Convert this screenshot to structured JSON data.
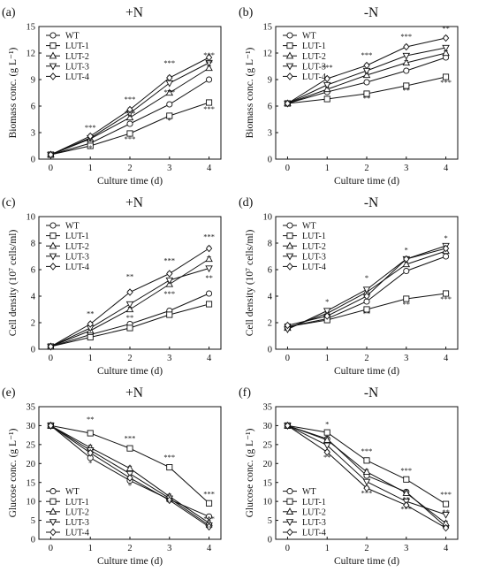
{
  "chart_data": [
    {
      "type": "line",
      "panel_label": "(a)",
      "title": "+N",
      "xlabel": "Culture time (d)",
      "ylabel": "Biomass conc. (g L⁻¹)",
      "x": [
        0,
        1,
        2,
        3,
        4
      ],
      "xlim": [
        -0.3,
        4.3
      ],
      "ylim": [
        0,
        15
      ],
      "yticks": [
        0,
        3,
        6,
        9,
        12,
        15
      ],
      "legend_position": "top-left",
      "series": [
        {
          "name": "WT",
          "marker": "circle",
          "values": [
            0.5,
            1.8,
            4.0,
            6.2,
            9.0
          ]
        },
        {
          "name": "LUT-1",
          "marker": "square",
          "values": [
            0.5,
            1.5,
            2.9,
            4.9,
            6.4
          ]
        },
        {
          "name": "LUT-2",
          "marker": "triangle-up",
          "values": [
            0.5,
            2.3,
            4.7,
            7.5,
            10.3
          ]
        },
        {
          "name": "LUT-3",
          "marker": "triangle-down",
          "values": [
            0.5,
            2.4,
            5.2,
            8.6,
            10.9
          ]
        },
        {
          "name": "LUT-4",
          "marker": "diamond",
          "values": [
            0.5,
            2.6,
            5.6,
            9.2,
            11.5
          ]
        }
      ],
      "annotations": [
        {
          "x": 1,
          "y": 3.3,
          "text": "***"
        },
        {
          "x": 1,
          "y": 1.0,
          "text": "*"
        },
        {
          "x": 2,
          "y": 6.5,
          "text": "***"
        },
        {
          "x": 2,
          "y": 4.9,
          "text": "***"
        },
        {
          "x": 2,
          "y": 2.0,
          "text": "***"
        },
        {
          "x": 3,
          "y": 10.6,
          "text": "***"
        },
        {
          "x": 3,
          "y": 7.3,
          "text": "***"
        },
        {
          "x": 3,
          "y": 4.1,
          "text": "*"
        },
        {
          "x": 4,
          "y": 11.5,
          "text": "***"
        },
        {
          "x": 4,
          "y": 10.6,
          "text": "**"
        },
        {
          "x": 4,
          "y": 5.4,
          "text": "***"
        }
      ]
    },
    {
      "type": "line",
      "panel_label": "(b)",
      "title": "-N",
      "xlabel": "Culture time (d)",
      "ylabel": "Biomass conc. (g L⁻¹)",
      "x": [
        0,
        1,
        2,
        3,
        4
      ],
      "xlim": [
        -0.3,
        4.3
      ],
      "ylim": [
        0,
        15
      ],
      "yticks": [
        0,
        3,
        6,
        9,
        12,
        15
      ],
      "legend_position": "top-left",
      "series": [
        {
          "name": "WT",
          "marker": "circle",
          "values": [
            6.3,
            7.6,
            8.7,
            10.0,
            11.5
          ]
        },
        {
          "name": "LUT-1",
          "marker": "square",
          "values": [
            6.3,
            6.8,
            7.4,
            8.3,
            9.3
          ]
        },
        {
          "name": "LUT-2",
          "marker": "triangle-up",
          "values": [
            6.3,
            7.9,
            9.5,
            10.9,
            12.0
          ]
        },
        {
          "name": "LUT-3",
          "marker": "triangle-down",
          "values": [
            6.3,
            8.4,
            10.0,
            11.7,
            12.6
          ]
        },
        {
          "name": "LUT-4",
          "marker": "diamond",
          "values": [
            6.3,
            9.1,
            10.6,
            12.7,
            13.7
          ]
        }
      ],
      "annotations": [
        {
          "x": 1,
          "y": 10.1,
          "text": "***"
        },
        {
          "x": 2,
          "y": 11.5,
          "text": "***"
        },
        {
          "x": 2,
          "y": 6.6,
          "text": "**"
        },
        {
          "x": 3,
          "y": 13.6,
          "text": "***"
        },
        {
          "x": 3,
          "y": 7.5,
          "text": "**"
        },
        {
          "x": 4,
          "y": 14.5,
          "text": "**"
        },
        {
          "x": 4,
          "y": 8.4,
          "text": "***"
        }
      ]
    },
    {
      "type": "line",
      "panel_label": "(c)",
      "title": "+N",
      "xlabel": "Culture time (d)",
      "ylabel": "Cell density (10⁷ cells/ml)",
      "x": [
        0,
        1,
        2,
        3,
        4
      ],
      "xlim": [
        -0.3,
        4.3
      ],
      "ylim": [
        0,
        10
      ],
      "yticks": [
        0,
        2,
        4,
        6,
        8,
        10
      ],
      "legend_position": "top-left",
      "series": [
        {
          "name": "WT",
          "marker": "circle",
          "values": [
            0.2,
            1.1,
            1.9,
            2.9,
            4.2
          ]
        },
        {
          "name": "LUT-1",
          "marker": "square",
          "values": [
            0.2,
            0.9,
            1.6,
            2.6,
            3.4
          ]
        },
        {
          "name": "LUT-2",
          "marker": "triangle-up",
          "values": [
            0.2,
            1.4,
            3.0,
            4.9,
            6.8
          ]
        },
        {
          "name": "LUT-3",
          "marker": "triangle-down",
          "values": [
            0.2,
            1.6,
            3.4,
            5.2,
            6.1
          ]
        },
        {
          "name": "LUT-4",
          "marker": "diamond",
          "values": [
            0.2,
            1.9,
            4.3,
            5.7,
            7.6
          ]
        }
      ],
      "annotations": [
        {
          "x": 1,
          "y": 2.5,
          "text": "**"
        },
        {
          "x": 2,
          "y": 5.3,
          "text": "**"
        },
        {
          "x": 2,
          "y": 2.2,
          "text": "**"
        },
        {
          "x": 3,
          "y": 6.5,
          "text": "***"
        },
        {
          "x": 3,
          "y": 4.0,
          "text": "***"
        },
        {
          "x": 4,
          "y": 8.3,
          "text": "***"
        },
        {
          "x": 4,
          "y": 5.2,
          "text": "**"
        }
      ]
    },
    {
      "type": "line",
      "panel_label": "(d)",
      "title": "-N",
      "xlabel": "Culture time (d)",
      "ylabel": "Cell density (10⁷ cells/ml)",
      "x": [
        0,
        1,
        2,
        3,
        4
      ],
      "xlim": [
        -0.3,
        4.3
      ],
      "ylim": [
        0,
        10
      ],
      "yticks": [
        0,
        2,
        4,
        6,
        8,
        10
      ],
      "legend_position": "top-left",
      "series": [
        {
          "name": "WT",
          "marker": "circle",
          "values": [
            1.7,
            2.3,
            3.6,
            5.9,
            7.0
          ]
        },
        {
          "name": "LUT-1",
          "marker": "square",
          "values": [
            1.7,
            2.2,
            3.0,
            3.8,
            4.2
          ]
        },
        {
          "name": "LUT-2",
          "marker": "triangle-up",
          "values": [
            1.6,
            2.7,
            4.3,
            6.4,
            7.4
          ]
        },
        {
          "name": "LUT-3",
          "marker": "triangle-down",
          "values": [
            1.5,
            2.9,
            4.5,
            6.8,
            7.8
          ]
        },
        {
          "name": "LUT-4",
          "marker": "diamond",
          "values": [
            1.8,
            2.5,
            4.0,
            6.8,
            7.6
          ]
        }
      ],
      "annotations": [
        {
          "x": 1,
          "y": 3.4,
          "text": "*"
        },
        {
          "x": 2,
          "y": 5.2,
          "text": "*"
        },
        {
          "x": 2,
          "y": 2.5,
          "text": "**"
        },
        {
          "x": 3,
          "y": 7.3,
          "text": "*"
        },
        {
          "x": 3,
          "y": 3.2,
          "text": "**"
        },
        {
          "x": 4,
          "y": 8.2,
          "text": "*"
        },
        {
          "x": 4,
          "y": 3.6,
          "text": "***"
        }
      ]
    },
    {
      "type": "line",
      "panel_label": "(e)",
      "title": "+N",
      "xlabel": "Culture time (d)",
      "ylabel": "Glucose conc. (g L⁻¹)",
      "x": [
        0,
        1,
        2,
        3,
        4
      ],
      "xlim": [
        -0.3,
        4.3
      ],
      "ylim": [
        0,
        35
      ],
      "yticks": [
        0,
        5,
        10,
        15,
        20,
        25,
        30,
        35
      ],
      "legend_position": "bottom-left",
      "series": [
        {
          "name": "WT",
          "marker": "circle",
          "values": [
            30.0,
            21.5,
            15.5,
            10.5,
            6.0
          ]
        },
        {
          "name": "LUT-1",
          "marker": "square",
          "values": [
            30.0,
            28.0,
            24.0,
            19.0,
            9.5
          ]
        },
        {
          "name": "LUT-2",
          "marker": "triangle-up",
          "values": [
            30.0,
            24.2,
            18.7,
            11.3,
            4.3
          ]
        },
        {
          "name": "LUT-3",
          "marker": "triangle-down",
          "values": [
            30.0,
            23.5,
            17.3,
            10.8,
            3.7
          ]
        },
        {
          "name": "LUT-4",
          "marker": "diamond",
          "values": [
            30.0,
            22.8,
            16.2,
            10.3,
            3.3
          ]
        }
      ],
      "annotations": [
        {
          "x": 1,
          "y": 31.0,
          "text": "**"
        },
        {
          "x": 1,
          "y": 19.5,
          "text": "*"
        },
        {
          "x": 2,
          "y": 26.0,
          "text": "***"
        },
        {
          "x": 2,
          "y": 13.5,
          "text": "*"
        },
        {
          "x": 3,
          "y": 21.0,
          "text": "***"
        },
        {
          "x": 3,
          "y": 9.2,
          "text": "**"
        },
        {
          "x": 4,
          "y": 11.3,
          "text": "***"
        },
        {
          "x": 4,
          "y": 4.8,
          "text": "***"
        },
        {
          "x": 4,
          "y": 2.3,
          "text": "**"
        }
      ]
    },
    {
      "type": "line",
      "panel_label": "(f)",
      "title": "-N",
      "xlabel": "Culture time (d)",
      "ylabel": "Glucose conc. (g L⁻¹)",
      "x": [
        0,
        1,
        2,
        3,
        4
      ],
      "xlim": [
        -0.3,
        4.3
      ],
      "ylim": [
        0,
        35
      ],
      "yticks": [
        0,
        5,
        10,
        15,
        20,
        25,
        30,
        35
      ],
      "legend_position": "bottom-left",
      "series": [
        {
          "name": "WT",
          "marker": "circle",
          "values": [
            30.0,
            26.5,
            16.8,
            12.5,
            3.3
          ]
        },
        {
          "name": "LUT-1",
          "marker": "square",
          "values": [
            30.0,
            28.2,
            20.8,
            15.8,
            9.3
          ]
        },
        {
          "name": "LUT-2",
          "marker": "triangle-up",
          "values": [
            30.0,
            26.2,
            17.8,
            12.2,
            4.2
          ]
        },
        {
          "name": "LUT-3",
          "marker": "triangle-down",
          "values": [
            30.0,
            24.8,
            15.2,
            10.0,
            6.5
          ]
        },
        {
          "name": "LUT-4",
          "marker": "diamond",
          "values": [
            30.0,
            23.0,
            13.5,
            9.0,
            3.0
          ]
        }
      ],
      "annotations": [
        {
          "x": 1,
          "y": 29.8,
          "text": "*"
        },
        {
          "x": 1,
          "y": 21.0,
          "text": "**"
        },
        {
          "x": 2,
          "y": 22.6,
          "text": "***"
        },
        {
          "x": 2,
          "y": 11.5,
          "text": "***"
        },
        {
          "x": 3,
          "y": 17.5,
          "text": "***"
        },
        {
          "x": 3,
          "y": 7.3,
          "text": "***"
        },
        {
          "x": 3,
          "y": 9.9,
          "text": "**"
        },
        {
          "x": 4,
          "y": 11.2,
          "text": "***"
        },
        {
          "x": 4,
          "y": 6.5,
          "text": "**"
        }
      ]
    }
  ]
}
